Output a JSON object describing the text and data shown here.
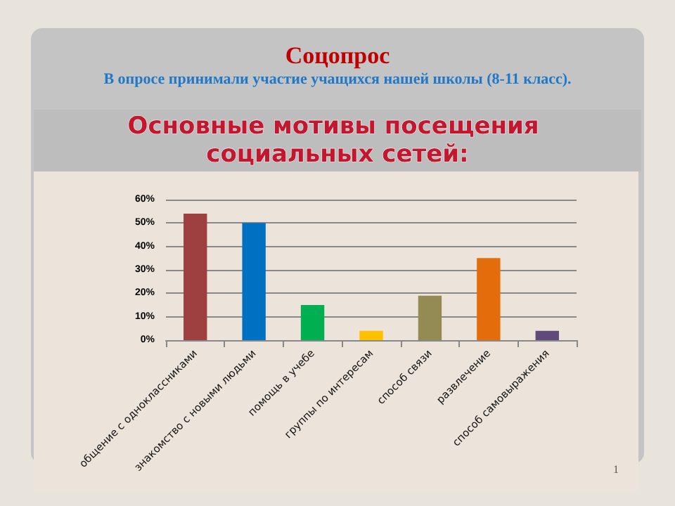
{
  "chart_data": {
    "type": "bar",
    "title": "Соцопрос",
    "subtitle": "В опросе принимали участие учащихся нашей школы (8-11 класс).",
    "annotations": [
      "Основные мотивы посещения социальных сетей:",
      "1"
    ],
    "categories": [
      "общение с одноклассниками",
      "знакомство с новыми людьми",
      "помощь в учебе",
      "группы по интересам",
      "способ связи",
      "развлечение",
      "способ самовыражения"
    ],
    "values": [
      54,
      50,
      15,
      4,
      19,
      35,
      4
    ],
    "colors": [
      "#9e4040",
      "#0070c0",
      "#00b050",
      "#ffc000",
      "#948a54",
      "#e46c0a",
      "#604a7b"
    ],
    "ylim": [
      0,
      60
    ],
    "yticks": [
      {
        "value": 0,
        "label": "0%"
      },
      {
        "value": 10,
        "label": "10%"
      },
      {
        "value": 20,
        "label": "20%"
      },
      {
        "value": 30,
        "label": "30%"
      },
      {
        "value": 40,
        "label": "40%"
      },
      {
        "value": 50,
        "label": "50%"
      },
      {
        "value": 60,
        "label": "60%"
      }
    ],
    "grid": "y"
  }
}
